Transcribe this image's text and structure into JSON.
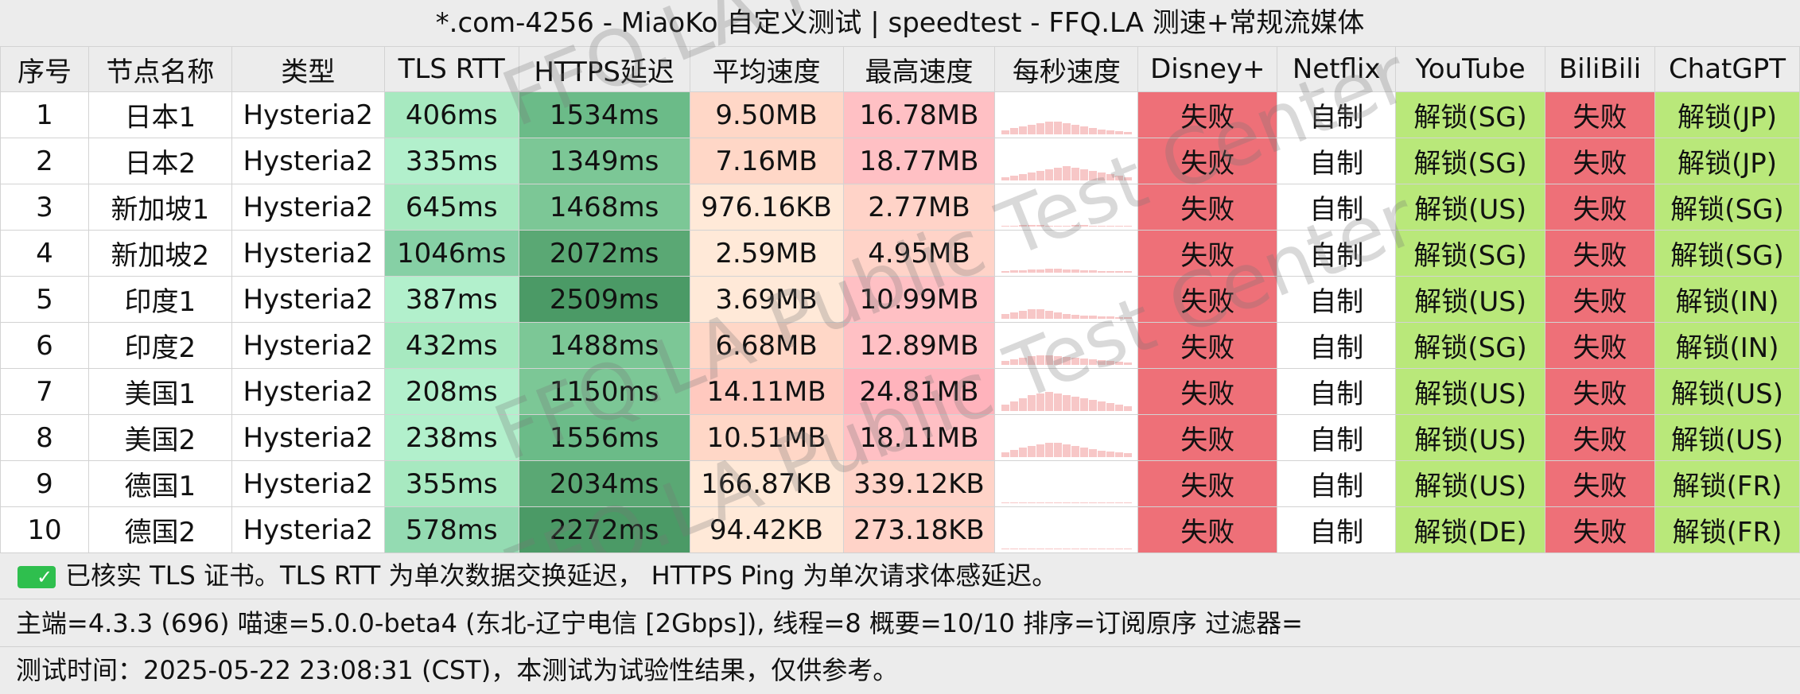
{
  "title": "*.com-4256 - MiaoKo 自定义测试 | speedtest - FFQ.LA 测速+常规流媒体",
  "headers": [
    "序号",
    "节点名称",
    "类型",
    "TLS RTT",
    "HTTPS延迟",
    "平均速度",
    "最高速度",
    "每秒速度",
    "Disney+",
    "Netflix",
    "YouTube",
    "BiliBili",
    "ChatGPT"
  ],
  "rows": [
    {
      "no": "1",
      "name": "日本1",
      "type": "Hysteria2",
      "tls": "406ms",
      "https": "1534ms",
      "avg": "9.50MB",
      "max": "16.78MB",
      "disney": "失败",
      "netflix": "自制",
      "youtube": "解锁(SG)",
      "bili": "失败",
      "gpt": "解锁(JP)"
    },
    {
      "no": "2",
      "name": "日本2",
      "type": "Hysteria2",
      "tls": "335ms",
      "https": "1349ms",
      "avg": "7.16MB",
      "max": "18.77MB",
      "disney": "失败",
      "netflix": "自制",
      "youtube": "解锁(SG)",
      "bili": "失败",
      "gpt": "解锁(JP)"
    },
    {
      "no": "3",
      "name": "新加坡1",
      "type": "Hysteria2",
      "tls": "645ms",
      "https": "1468ms",
      "avg": "976.16KB",
      "max": "2.77MB",
      "disney": "失败",
      "netflix": "自制",
      "youtube": "解锁(US)",
      "bili": "失败",
      "gpt": "解锁(SG)"
    },
    {
      "no": "4",
      "name": "新加坡2",
      "type": "Hysteria2",
      "tls": "1046ms",
      "https": "2072ms",
      "avg": "2.59MB",
      "max": "4.95MB",
      "disney": "失败",
      "netflix": "自制",
      "youtube": "解锁(SG)",
      "bili": "失败",
      "gpt": "解锁(SG)"
    },
    {
      "no": "5",
      "name": "印度1",
      "type": "Hysteria2",
      "tls": "387ms",
      "https": "2509ms",
      "avg": "3.69MB",
      "max": "10.99MB",
      "disney": "失败",
      "netflix": "自制",
      "youtube": "解锁(US)",
      "bili": "失败",
      "gpt": "解锁(IN)"
    },
    {
      "no": "6",
      "name": "印度2",
      "type": "Hysteria2",
      "tls": "432ms",
      "https": "1488ms",
      "avg": "6.68MB",
      "max": "12.89MB",
      "disney": "失败",
      "netflix": "自制",
      "youtube": "解锁(SG)",
      "bili": "失败",
      "gpt": "解锁(IN)"
    },
    {
      "no": "7",
      "name": "美国1",
      "type": "Hysteria2",
      "tls": "208ms",
      "https": "1150ms",
      "avg": "14.11MB",
      "max": "24.81MB",
      "disney": "失败",
      "netflix": "自制",
      "youtube": "解锁(US)",
      "bili": "失败",
      "gpt": "解锁(US)"
    },
    {
      "no": "8",
      "name": "美国2",
      "type": "Hysteria2",
      "tls": "238ms",
      "https": "1556ms",
      "avg": "10.51MB",
      "max": "18.11MB",
      "disney": "失败",
      "netflix": "自制",
      "youtube": "解锁(US)",
      "bili": "失败",
      "gpt": "解锁(US)"
    },
    {
      "no": "9",
      "name": "德国1",
      "type": "Hysteria2",
      "tls": "355ms",
      "https": "2034ms",
      "avg": "166.87KB",
      "max": "339.12KB",
      "disney": "失败",
      "netflix": "自制",
      "youtube": "解锁(US)",
      "bili": "失败",
      "gpt": "解锁(FR)"
    },
    {
      "no": "10",
      "name": "德国2",
      "type": "Hysteria2",
      "tls": "578ms",
      "https": "2272ms",
      "avg": "94.42KB",
      "max": "273.18KB",
      "disney": "失败",
      "netflix": "自制",
      "youtube": "解锁(DE)",
      "bili": "失败",
      "gpt": "解锁(FR)"
    }
  ],
  "footer": {
    "check_icon": "check-icon",
    "line1": "已核实 TLS 证书。TLS RTT 为单次数据交换延迟，  HTTPS Ping 为单次请求体感延迟。",
    "line2": "主端=4.3.3 (696) 喵速=5.0.0-beta4 (东北-辽宁电信 [2Gbps]), 线程=8 概要=10/10 排序=订阅原序 过滤器=",
    "line3": "测试时间：2025-05-22 23:08:31 (CST)，本测试为试验性结果，仅供参考。"
  },
  "watermark": "FFQ.LA Public Test Center",
  "colors": {
    "fail": "#ee7078",
    "unlock": "#b9e87a",
    "tls": [
      "#b2f0cc",
      "#a7e9c0",
      "#94dbb2",
      "#86d0a5"
    ],
    "https": [
      "#7cc796",
      "#6bbb88",
      "#5aa874",
      "#4b9a66"
    ],
    "avg": [
      "#ffe9d8",
      "#ffd7c7",
      "#ffc9bf"
    ],
    "max": [
      "#ffd3c8",
      "#ffc0c4",
      "#ffb3bc"
    ],
    "spark": "#f7c7c7"
  }
}
